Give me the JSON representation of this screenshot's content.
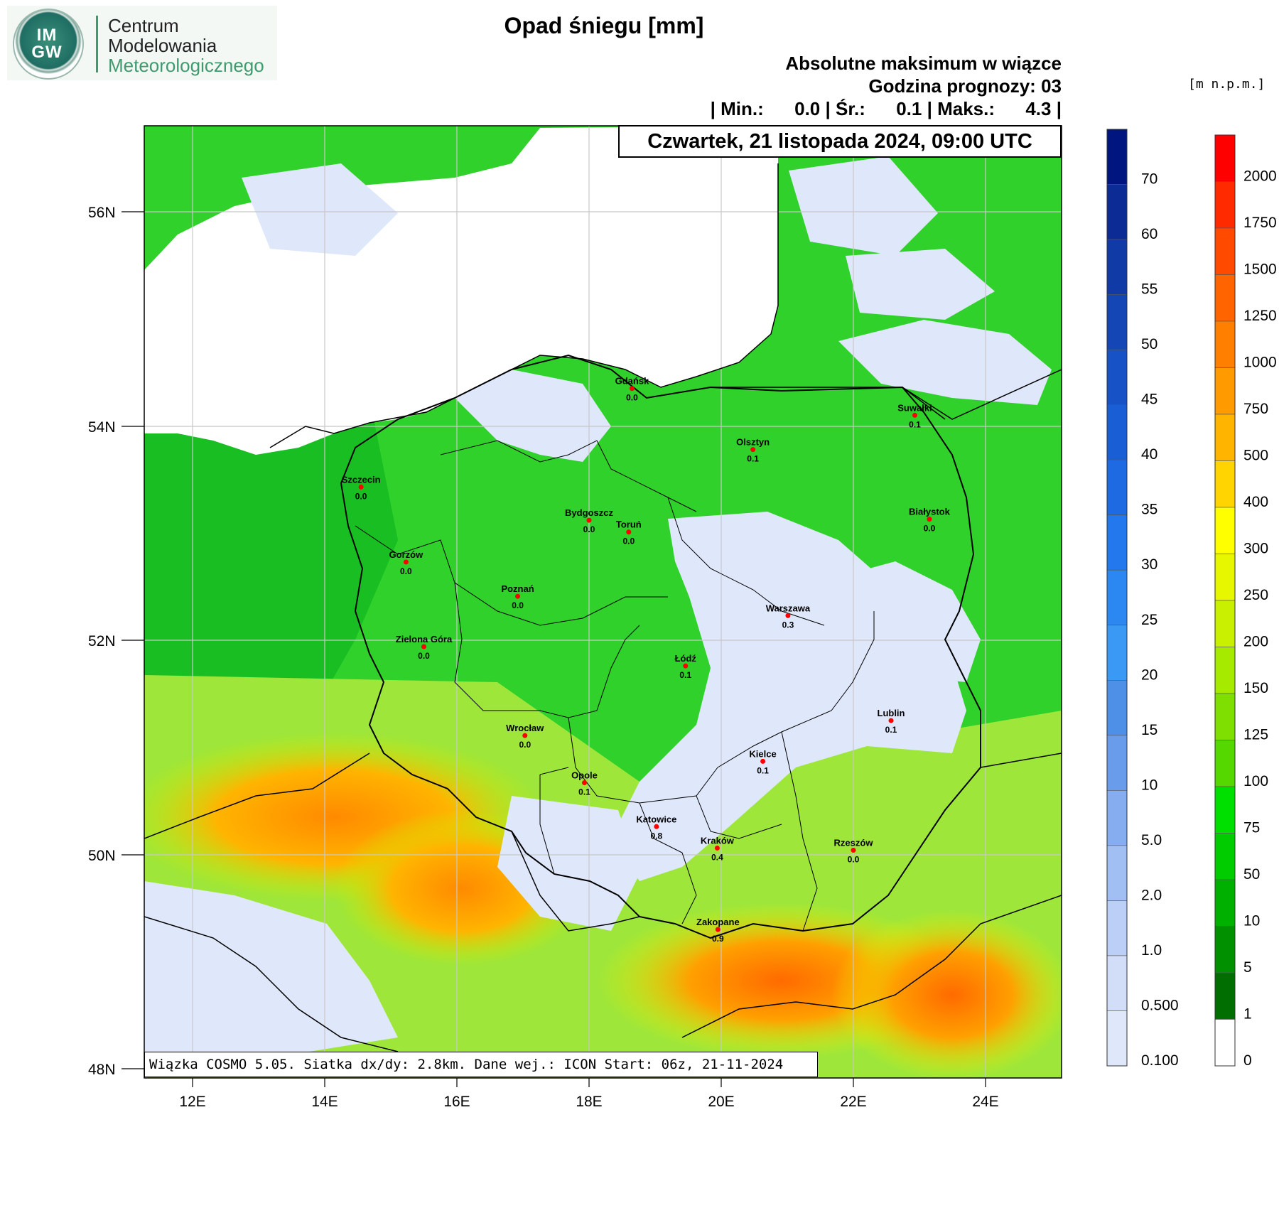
{
  "logo": {
    "imgw": "IM\nGW",
    "org_lines": [
      "Centrum",
      "Modelowania",
      "Meteorologicznego"
    ]
  },
  "title": "Opad śniegu [mm]",
  "subtitle": "Absolutne maksimum w wiązce",
  "forecast_hour": "Godzina prognozy: 03",
  "stats": "| Min.:      0.0 | Śr.:      0.1 | Maks.:      4.3 |",
  "date": "Czwartek, 21 listopada 2024, 09:00 UTC",
  "footer": "Wiązka COSMO 5.05. Siatka dx/dy: 2.8km. Dane wej.: ICON Start: 06z, 21-11-2024",
  "unit_label": "[m n.p.m.]",
  "axes": {
    "lat_labels": [
      "56N",
      "54N",
      "52N",
      "50N",
      "48N"
    ],
    "lon_labels": [
      "12E",
      "14E",
      "16E",
      "18E",
      "20E",
      "22E",
      "24E"
    ]
  },
  "cities": [
    {
      "name": "Gdańsk",
      "value": "0.0",
      "lon": 18.65,
      "lat": 54.35
    },
    {
      "name": "Suwałki",
      "value": "0.1",
      "lon": 22.93,
      "lat": 54.1
    },
    {
      "name": "Olsztyn",
      "value": "0.1",
      "lon": 20.48,
      "lat": 53.78
    },
    {
      "name": "Szczecin",
      "value": "0.0",
      "lon": 14.55,
      "lat": 53.43
    },
    {
      "name": "Bydgoszcz",
      "value": "0.0",
      "lon": 18.0,
      "lat": 53.12
    },
    {
      "name": "Toruń",
      "value": "0.0",
      "lon": 18.6,
      "lat": 53.01
    },
    {
      "name": "Białystok",
      "value": "0.0",
      "lon": 23.15,
      "lat": 53.13
    },
    {
      "name": "Gorzów",
      "value": "0.0",
      "lon": 15.23,
      "lat": 52.73
    },
    {
      "name": "Poznań",
      "value": "0.0",
      "lon": 16.92,
      "lat": 52.41
    },
    {
      "name": "Warszawa",
      "value": "0.3",
      "lon": 21.01,
      "lat": 52.23
    },
    {
      "name": "Zielona Góra",
      "value": "0.0",
      "lon": 15.5,
      "lat": 51.94
    },
    {
      "name": "Łódź",
      "value": "0.1",
      "lon": 19.46,
      "lat": 51.76
    },
    {
      "name": "Lublin",
      "value": "0.1",
      "lon": 22.57,
      "lat": 51.25
    },
    {
      "name": "Wrocław",
      "value": "0.0",
      "lon": 17.03,
      "lat": 51.11
    },
    {
      "name": "Kielce",
      "value": "0.1",
      "lon": 20.63,
      "lat": 50.87
    },
    {
      "name": "Opole",
      "value": "0.1",
      "lon": 17.93,
      "lat": 50.67
    },
    {
      "name": "Katowice",
      "value": "0.8",
      "lon": 19.02,
      "lat": 50.26
    },
    {
      "name": "Kraków",
      "value": "0.4",
      "lon": 19.94,
      "lat": 50.06
    },
    {
      "name": "Rzeszów",
      "value": "0.0",
      "lon": 22.0,
      "lat": 50.04
    },
    {
      "name": "Zakopane",
      "value": "0.9",
      "lon": 19.95,
      "lat": 49.3
    }
  ],
  "snow_legend": [
    {
      "label": "70",
      "color": "#00157f"
    },
    {
      "label": "60",
      "color": "#0c2b94"
    },
    {
      "label": "55",
      "color": "#103aa5"
    },
    {
      "label": "50",
      "color": "#1446b6"
    },
    {
      "label": "45",
      "color": "#1752c7"
    },
    {
      "label": "40",
      "color": "#1a5ed6"
    },
    {
      "label": "35",
      "color": "#1e6ae3"
    },
    {
      "label": "30",
      "color": "#2278ec"
    },
    {
      "label": "25",
      "color": "#2b88f2"
    },
    {
      "label": "20",
      "color": "#3a99f5"
    },
    {
      "label": "15",
      "color": "#4e8fe8"
    },
    {
      "label": "10",
      "color": "#6a9cec"
    },
    {
      "label": "5.0",
      "color": "#86adf0"
    },
    {
      "label": "2.0",
      "color": "#a2bff3"
    },
    {
      "label": "1.0",
      "color": "#bccff6"
    },
    {
      "label": "0.500",
      "color": "#d2ddf8"
    },
    {
      "label": "0.100",
      "color": "#dfe7fa"
    }
  ],
  "height_legend": [
    {
      "label": "2000",
      "color": "#ff0000"
    },
    {
      "label": "1750",
      "color": "#ff2a00"
    },
    {
      "label": "1500",
      "color": "#ff4a00"
    },
    {
      "label": "1250",
      "color": "#ff6400"
    },
    {
      "label": "1000",
      "color": "#ff7f00"
    },
    {
      "label": "750",
      "color": "#ff9a00"
    },
    {
      "label": "500",
      "color": "#ffb400"
    },
    {
      "label": "400",
      "color": "#ffd400"
    },
    {
      "label": "300",
      "color": "#ffff00"
    },
    {
      "label": "250",
      "color": "#e6f700"
    },
    {
      "label": "200",
      "color": "#c8f000"
    },
    {
      "label": "150",
      "color": "#a6ea00"
    },
    {
      "label": "125",
      "color": "#7fe000"
    },
    {
      "label": "100",
      "color": "#55d700"
    },
    {
      "label": "75",
      "color": "#00e000"
    },
    {
      "label": "50",
      "color": "#00cc00"
    },
    {
      "label": "10",
      "color": "#00b000"
    },
    {
      "label": "5",
      "color": "#009000"
    },
    {
      "label": "1",
      "color": "#006e00"
    },
    {
      "label": "0",
      "color": "#ffffff"
    }
  ]
}
